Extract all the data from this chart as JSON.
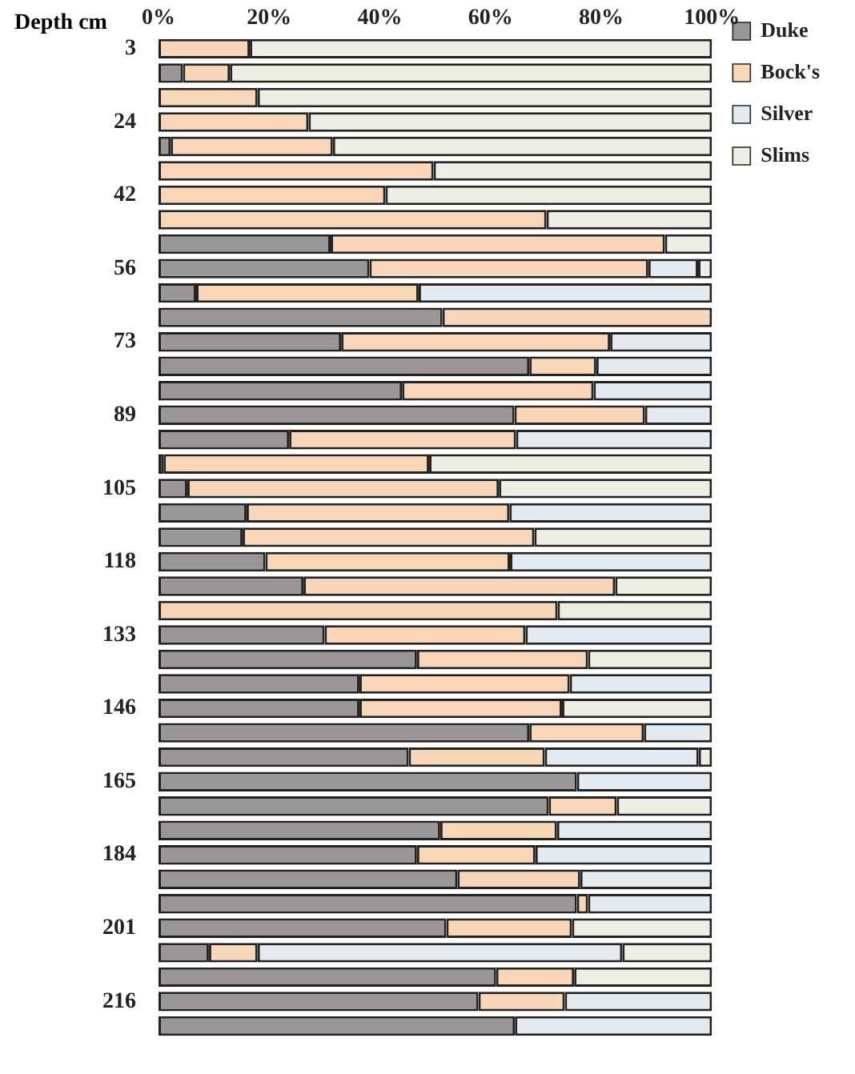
{
  "chart_data": {
    "type": "bar",
    "orientation": "horizontal",
    "stacked": true,
    "ylabel": "Depth cm",
    "categories": [
      "3",
      null,
      null,
      "24",
      null,
      null,
      "42",
      null,
      null,
      "56",
      null,
      null,
      "73",
      null,
      null,
      "89",
      null,
      null,
      "105",
      null,
      null,
      "118",
      null,
      null,
      "133",
      null,
      null,
      "146",
      null,
      null,
      "165",
      null,
      null,
      "184",
      null,
      null,
      "201",
      null,
      null,
      "216",
      null
    ],
    "series": [
      {
        "name": "Duke",
        "color": "#9a9696",
        "values": [
          0,
          4.4,
          0,
          0,
          2.2,
          0,
          0,
          0,
          31.1,
          38.1,
          6.8,
          51.3,
          33.0,
          67.0,
          44.0,
          64.3,
          23.6,
          0.9,
          5.2,
          15.9,
          15.2,
          19.3,
          26.2,
          0,
          30.0,
          46.7,
          36.3,
          36.3,
          67.0,
          45.2,
          75.6,
          70.5,
          50.9,
          46.7,
          54.0,
          75.6,
          52.0,
          9.1,
          61.0,
          57.8,
          64.4
        ]
      },
      {
        "name": "Bock's",
        "color": "#f9d6b8",
        "values": [
          16.5,
          8.5,
          17.9,
          27.1,
          29.3,
          49.7,
          41.0,
          70.1,
          60.4,
          50.4,
          40.2,
          48.7,
          48.6,
          12.1,
          34.6,
          23.6,
          41.0,
          48.0,
          56.3,
          47.5,
          52.7,
          44.2,
          56.3,
          72.1,
          36.3,
          30.9,
          38.0,
          36.6,
          20.7,
          24.6,
          0,
          12.3,
          21.1,
          21.4,
          22.2,
          2.0,
          22.7,
          8.8,
          14.1,
          15.6,
          0
        ]
      },
      {
        "name": "Silver",
        "color": "#e3ebf1",
        "values": [
          0,
          0,
          0,
          0,
          0,
          0,
          0,
          0,
          0,
          9.0,
          53.0,
          0,
          18.4,
          20.9,
          21.4,
          12.1,
          35.4,
          0,
          0,
          36.6,
          0,
          36.5,
          0,
          0,
          33.7,
          0,
          25.7,
          0,
          12.3,
          27.8,
          24.4,
          0,
          28.0,
          31.9,
          23.8,
          22.4,
          0,
          65.9,
          0,
          26.6,
          35.6
        ]
      },
      {
        "name": "Slims",
        "color": "#eeeee4",
        "values": [
          83.5,
          87.1,
          82.1,
          72.9,
          68.5,
          50.3,
          59.0,
          29.9,
          8.5,
          2.5,
          0,
          0,
          0,
          0,
          0,
          0,
          0,
          51.1,
          38.5,
          0,
          32.1,
          0,
          17.5,
          27.9,
          0,
          22.4,
          0,
          27.1,
          0,
          2.4,
          0,
          17.2,
          0,
          0,
          0,
          0,
          25.3,
          16.2,
          24.9,
          0,
          0
        ]
      }
    ],
    "xlim": [
      0,
      100
    ],
    "xticks": [
      {
        "value": 0,
        "label": "0%"
      },
      {
        "value": 20,
        "label": "20%"
      },
      {
        "value": 40,
        "label": "40%"
      },
      {
        "value": 60,
        "label": "60%"
      },
      {
        "value": 80,
        "label": "80%"
      },
      {
        "value": 100,
        "label": "100%"
      }
    ],
    "grid": false,
    "legend": "top right"
  }
}
